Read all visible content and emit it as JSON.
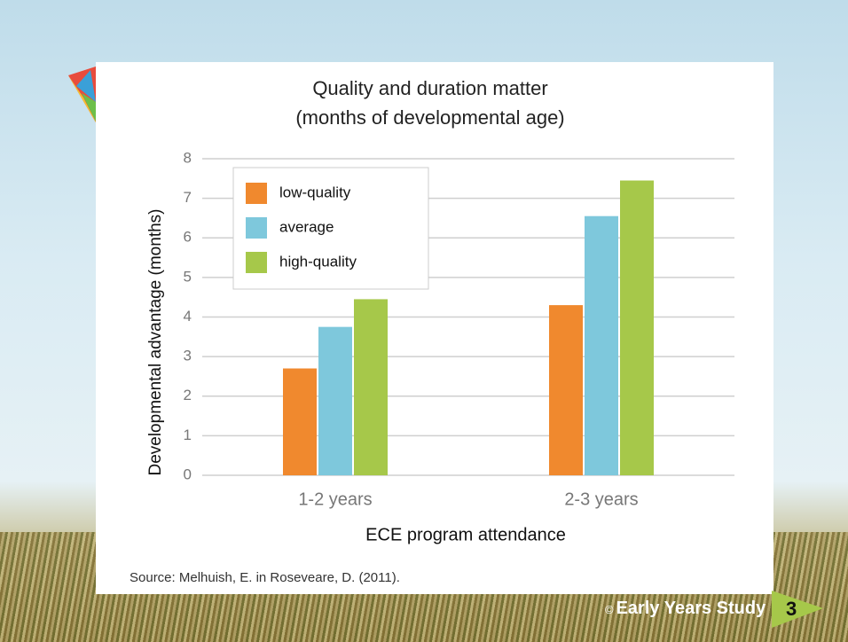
{
  "chart_data": {
    "type": "bar",
    "title": "Quality and duration matter",
    "subtitle": "(months of developmental age)",
    "y_label": "Developmental advantage (months)",
    "x_label": "ECE program attendance",
    "categories": [
      "1-2 years",
      "2-3 years"
    ],
    "series": [
      {
        "name": "low-quality",
        "color": "#f0892e",
        "values": [
          2.7,
          4.3
        ]
      },
      {
        "name": "average",
        "color": "#7ec8dc",
        "values": [
          3.75,
          6.55
        ]
      },
      {
        "name": "high-quality",
        "color": "#a6c84a",
        "values": [
          4.45,
          7.45
        ]
      }
    ],
    "ylim": [
      0,
      8
    ],
    "yticks": [
      0,
      1,
      2,
      3,
      4,
      5,
      6,
      7,
      8
    ],
    "grid": true,
    "legend": "upper left"
  },
  "slide": {
    "source": "Source: Melhuish, E. in Roseveare, D. (2011).",
    "copyright_symbol": "©",
    "brand": "Early Years Study",
    "page_number": 3
  }
}
